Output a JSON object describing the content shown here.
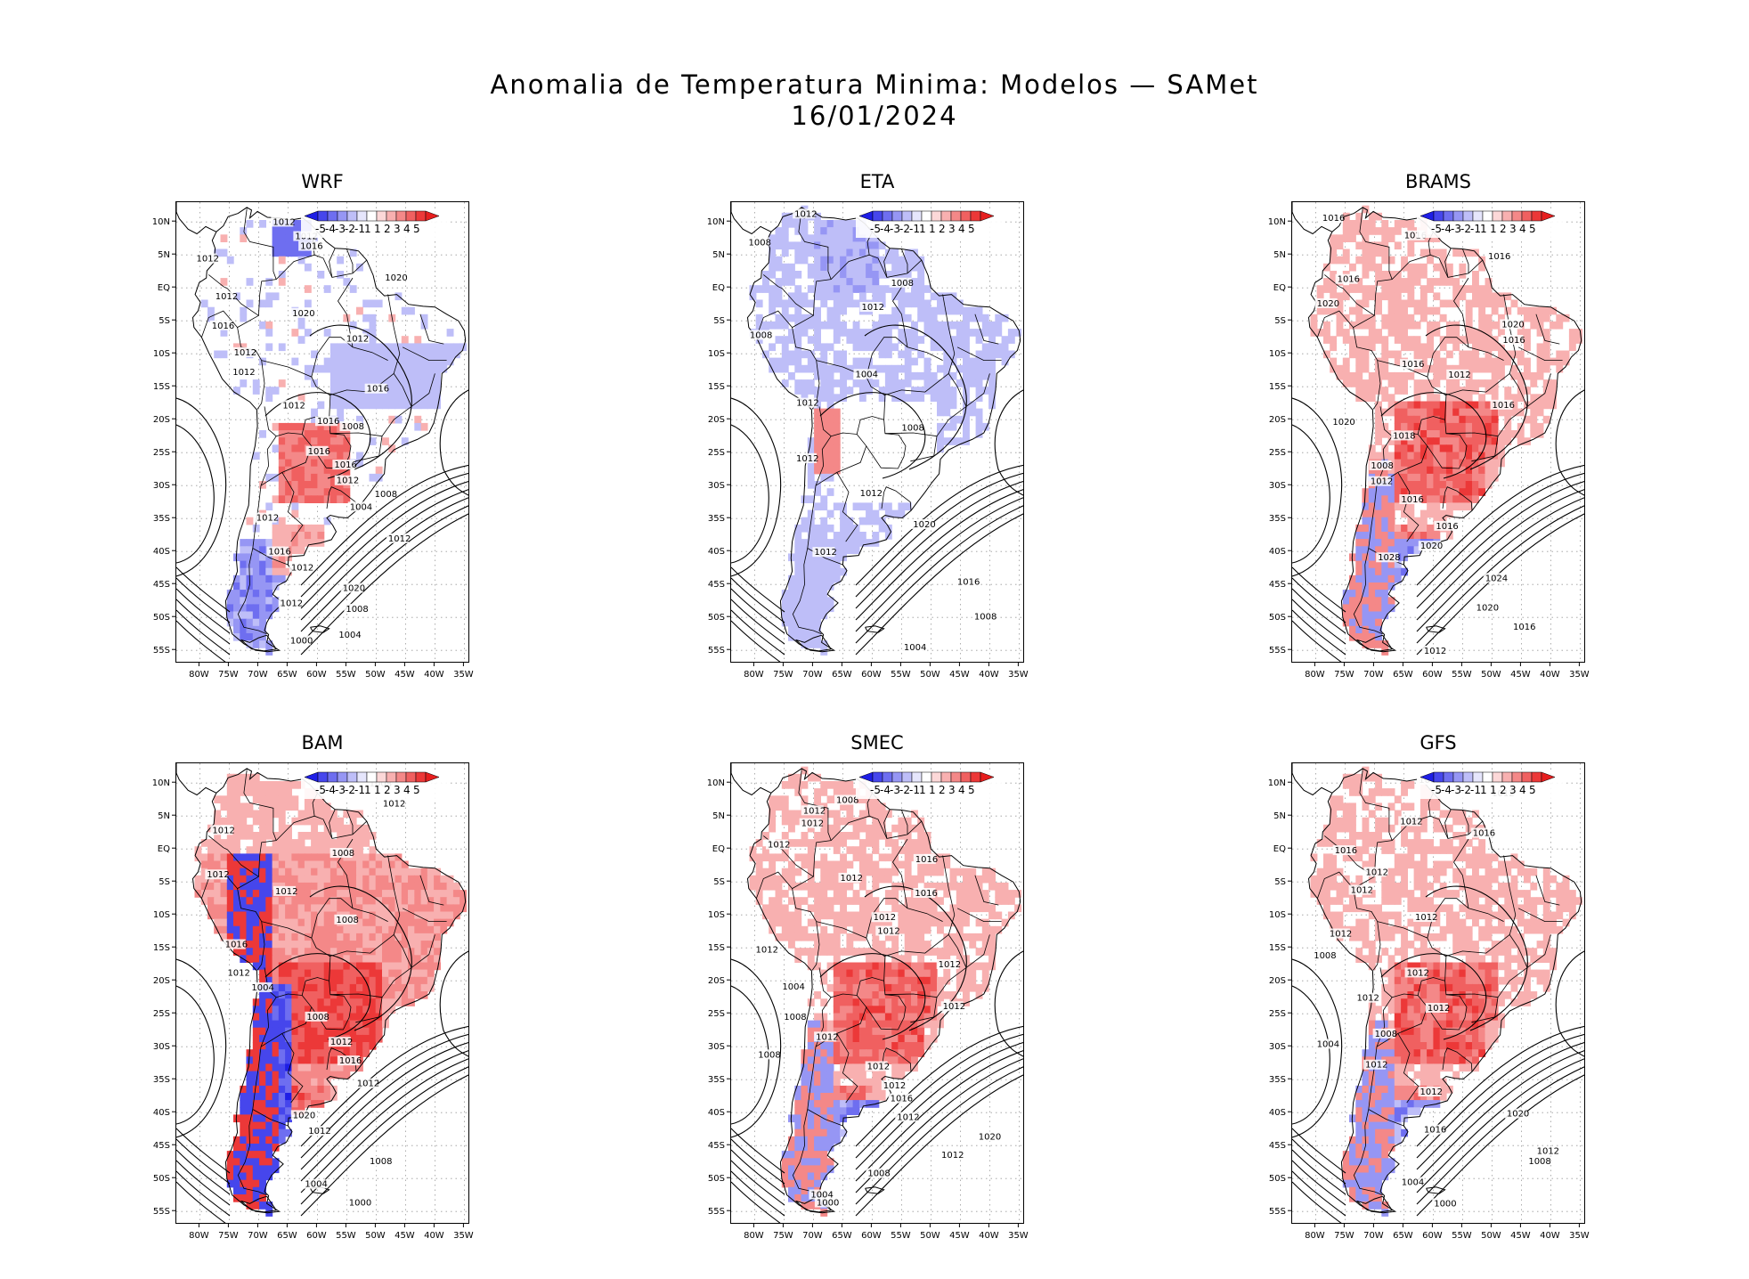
{
  "title": {
    "line1": "Anomalia de Temperatura Minima: Modelos — SAMet",
    "line2": "16/01/2024"
  },
  "colorbar": {
    "labels": [
      "-5",
      "-4",
      "-3",
      "-2",
      "-1",
      "1",
      "1",
      "2",
      "3",
      "4",
      "5"
    ],
    "colors": [
      "#1e1ee6",
      "#4646ec",
      "#6e6ef0",
      "#9696f4",
      "#bebef8",
      "#e6e6fc",
      "#ffffff",
      "#fcd8d8",
      "#f8b0b0",
      "#f48888",
      "#f06060",
      "#ec3838",
      "#e61e1e"
    ]
  },
  "axes": {
    "lat_labels": [
      "10N",
      "5N",
      "EQ",
      "5S",
      "10S",
      "15S",
      "20S",
      "25S",
      "30S",
      "35S",
      "40S",
      "45S",
      "50S",
      "55S"
    ],
    "lon_labels": [
      "80W",
      "75W",
      "70W",
      "65W",
      "60W",
      "55W",
      "50W",
      "45W",
      "40W",
      "35W"
    ]
  },
  "panels": [
    {
      "name": "WRF",
      "anomaly": "mixed-weak",
      "isobar_labels": [
        "1012",
        "1012",
        "1016",
        "1012",
        "1020",
        "1012",
        "1020",
        "1016",
        "1012",
        "1012",
        "1012",
        "1016",
        "1012",
        "1016",
        "1008",
        "1016",
        "1016",
        "1012",
        "1008",
        "1004",
        "1012",
        "1012",
        "1016",
        "1012",
        "1020",
        "1012",
        "1008",
        "1004",
        "1000"
      ]
    },
    {
      "name": "ETA",
      "anomaly": "cold",
      "isobar_labels": [
        "1012",
        "1008",
        "1008",
        "1012",
        "1008",
        "1004",
        "1012",
        "1008",
        "1012",
        "1012",
        "1020",
        "1012",
        "1016",
        "1008",
        "1004"
      ]
    },
    {
      "name": "BRAMS",
      "anomaly": "warm",
      "isobar_labels": [
        "1016",
        "1016",
        "1016",
        "1016",
        "1020",
        "1020",
        "1016",
        "1016",
        "1012",
        "1016",
        "1020",
        "1018",
        "1008",
        "1012",
        "1016",
        "1016",
        "1020",
        "1028",
        "1024",
        "1020",
        "1016",
        "1012"
      ]
    },
    {
      "name": "BAM",
      "anomaly": "warm-strong",
      "isobar_labels": [
        "1008",
        "1012",
        "1012",
        "1008",
        "1012",
        "1012",
        "1008",
        "1016",
        "1012",
        "1004",
        "1008",
        "1012",
        "1016",
        "1012",
        "1020",
        "1012",
        "1008",
        "1004",
        "1000"
      ]
    },
    {
      "name": "SMEC",
      "anomaly": "warm",
      "isobar_labels": [
        "1016",
        "1008",
        "1012",
        "1012",
        "1012",
        "1016",
        "1012",
        "1016",
        "1012",
        "1012",
        "1012",
        "1012",
        "1004",
        "1012",
        "1008",
        "1012",
        "1008",
        "1012",
        "1012",
        "1016",
        "1012",
        "1020",
        "1012",
        "1008",
        "1004",
        "1000"
      ]
    },
    {
      "name": "GFS",
      "anomaly": "warm",
      "isobar_labels": [
        "1012",
        "1012",
        "1012",
        "1016",
        "1016",
        "1012",
        "1012",
        "1012",
        "1012",
        "1008",
        "1012",
        "1012",
        "1012",
        "1008",
        "1004",
        "1012",
        "1012",
        "1020",
        "1016",
        "1012",
        "1008",
        "1004",
        "1000"
      ]
    }
  ]
}
